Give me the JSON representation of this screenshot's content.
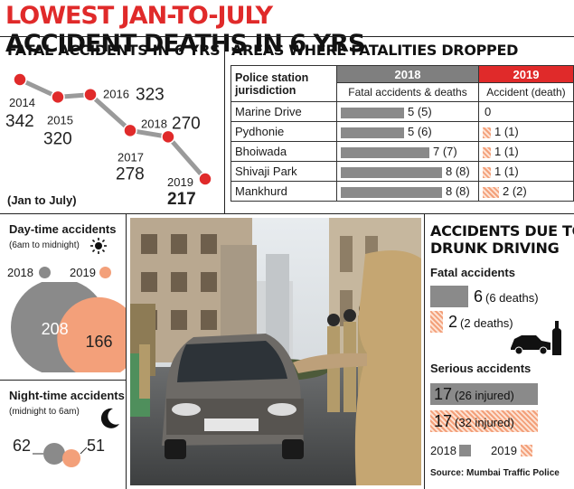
{
  "title": {
    "part1": "LOWEST JAN-TO-JULY",
    "part2": "ACCIDENT DEATHS IN 6 YRS"
  },
  "fatal6": {
    "heading": "FATAL ACCIDENTS IN 6 YRS",
    "note": "(Jan to July)",
    "colors": {
      "line": "#9a9a9a",
      "dot": "#e02a2a"
    }
  },
  "chart_data": [
    {
      "type": "line",
      "title": "FATAL ACCIDENTS IN 6 YRS",
      "subtitle": "(Jan to July)",
      "x": [
        "2014",
        "2015",
        "2016",
        "2017",
        "2018",
        "2019"
      ],
      "values": [
        342,
        320,
        323,
        278,
        270,
        217
      ]
    },
    {
      "type": "table",
      "title": "AREAS WHERE FATALITIES DROPPED",
      "columns": [
        "Police station jurisdiction",
        "2018 Fatal accidents & deaths",
        "2019 Accident (death)"
      ],
      "rows": [
        {
          "area": "Marine Drive",
          "accidents_2018": 5,
          "deaths_2018": 5,
          "accidents_2019": 0,
          "deaths_2019": null
        },
        {
          "area": "Pydhonie",
          "accidents_2018": 5,
          "deaths_2018": 6,
          "accidents_2019": 1,
          "deaths_2019": 1
        },
        {
          "area": "Bhoiwada",
          "accidents_2018": 7,
          "deaths_2018": 7,
          "accidents_2019": 1,
          "deaths_2019": 1
        },
        {
          "area": "Shivaji Park",
          "accidents_2018": 8,
          "deaths_2018": 8,
          "accidents_2019": 1,
          "deaths_2019": 1
        },
        {
          "area": "Mankhurd",
          "accidents_2018": 8,
          "deaths_2018": 8,
          "accidents_2019": 2,
          "deaths_2019": 2
        }
      ]
    },
    {
      "type": "bar",
      "title": "ACCIDENTS DUE TO DRUNK DRIVING",
      "groups": [
        {
          "name": "Fatal accidents",
          "2018": 6,
          "2019": 2,
          "deaths_2018": 6,
          "deaths_2019": 2
        },
        {
          "name": "Serious accidents",
          "2018": 17,
          "2019": 17,
          "injured_2018": 26,
          "injured_2019": 32
        }
      ]
    },
    {
      "type": "bubble",
      "title": "Day-time accidents",
      "subtitle": "(6am to midnight)",
      "series": [
        {
          "name": "2018",
          "value": 208
        },
        {
          "name": "2019",
          "value": 166
        }
      ]
    },
    {
      "type": "bubble",
      "title": "Night-time accidents",
      "subtitle": "(midnight to 6am)",
      "series": [
        {
          "name": "2018",
          "value": 62
        },
        {
          "name": "2019",
          "value": 51
        }
      ]
    }
  ],
  "areas": {
    "heading": "AREAS WHERE FATALITIES DROPPED",
    "col_station": "Police station jurisdiction",
    "year_2018": "2018",
    "year_2019": "2019",
    "sub_2018": "Fatal accidents & deaths",
    "sub_2019": "Accident (death)",
    "rows": [
      {
        "name": "Marine Drive",
        "label18": "5 (5)",
        "label19": "0"
      },
      {
        "name": "Pydhonie",
        "label18": "5 (6)",
        "label19": "1 (1)"
      },
      {
        "name": "Bhoiwada",
        "label18": "7 (7)",
        "label19": "1 (1)"
      },
      {
        "name": "Shivaji Park",
        "label18": "8 (8)",
        "label19": "1 (1)"
      },
      {
        "name": "Mankhurd",
        "label18": "8 (8)",
        "label19": "2 (2)"
      }
    ]
  },
  "daynight": {
    "day_title": "Day-time accidents",
    "day_sub": "(6am to midnight)",
    "night_title": "Night-time accidents",
    "night_sub": "(midnight to 6am)",
    "legend_2018": "2018",
    "legend_2019": "2019",
    "day_2018": "208",
    "day_2019": "166",
    "night_2018": "62",
    "night_2019": "51",
    "colors": {
      "y2018": "#8a8a8a",
      "y2019": "#f3a07a"
    }
  },
  "drunk": {
    "heading_line1": "ACCIDENTS DUE TO",
    "heading_line2": "DRUNK DRIVING",
    "fatal_label": "Fatal accidents",
    "fatal_2018": "6",
    "fatal_2018_note": "(6 deaths)",
    "fatal_2019": "2",
    "fatal_2019_note": "(2 deaths)",
    "serious_label": "Serious accidents",
    "serious_2018": "17",
    "serious_2018_note": "(26 injured)",
    "serious_2019": "17",
    "serious_2019_note": "(32 injured)",
    "legend_2018": "2018",
    "legend_2019": "2019",
    "source": "Source: Mumbai Traffic Police"
  }
}
